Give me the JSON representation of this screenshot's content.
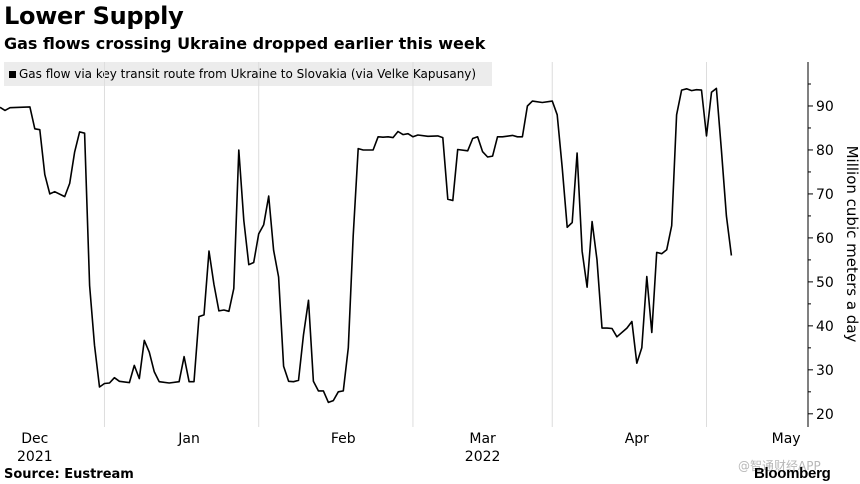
{
  "header": {
    "title": "Lower Supply",
    "subtitle": "Gas flows crossing Ukraine dropped earlier this week"
  },
  "footer": {
    "source": "Source: Eustream",
    "brand": "Bloomberg",
    "watermark": "@智通财经APP"
  },
  "colors": {
    "line": "#000000",
    "legend_bg": "#ececec",
    "grid": "#dddddd"
  },
  "chart_data": {
    "type": "line",
    "legend": "Gas flow via key transit route from Ukraine to Slovakia (via Velke Kapusany)",
    "ylabel": "Million cubic meters a day",
    "ylim": [
      17,
      100
    ],
    "yticks": [
      20,
      30,
      40,
      50,
      60,
      70,
      80,
      90
    ],
    "xlim": [
      "2021-11-24",
      "2022-05-05"
    ],
    "x_tick_labels": [
      {
        "date": "2021-12-01",
        "label": "Dec",
        "sublabel": "2021"
      },
      {
        "date": "2022-01-01",
        "label": "Jan",
        "sublabel": ""
      },
      {
        "date": "2022-02-01",
        "label": "Feb",
        "sublabel": ""
      },
      {
        "date": "2022-03-01",
        "label": "Mar",
        "sublabel": "2022"
      },
      {
        "date": "2022-04-01",
        "label": "Apr",
        "sublabel": ""
      },
      {
        "date": "2022-05-01",
        "label": "May",
        "sublabel": ""
      }
    ],
    "grid_dates": [
      "2021-12-15",
      "2022-01-15",
      "2022-02-15",
      "2022-03-15",
      "2022-04-15"
    ],
    "series": [
      {
        "name": "Gas flow via key transit route from Ukraine to Slovakia (via Velke Kapusany)",
        "points": [
          [
            "2021-11-24",
            89.7
          ],
          [
            "2021-11-25",
            89.0
          ],
          [
            "2021-11-26",
            89.6
          ],
          [
            "2021-11-28",
            89.7
          ],
          [
            "2021-11-30",
            89.8
          ],
          [
            "2021-12-01",
            84.8
          ],
          [
            "2021-12-02",
            84.6
          ],
          [
            "2021-12-03",
            74.4
          ],
          [
            "2021-12-04",
            70.0
          ],
          [
            "2021-12-05",
            70.5
          ],
          [
            "2021-12-07",
            69.4
          ],
          [
            "2021-12-08",
            72.4
          ],
          [
            "2021-12-09",
            79.5
          ],
          [
            "2021-12-10",
            84.1
          ],
          [
            "2021-12-11",
            83.8
          ],
          [
            "2021-12-12",
            49.2
          ],
          [
            "2021-12-13",
            35.6
          ],
          [
            "2021-12-14",
            26.1
          ],
          [
            "2021-12-15",
            26.9
          ],
          [
            "2021-12-16",
            27.0
          ],
          [
            "2021-12-17",
            28.2
          ],
          [
            "2021-12-18",
            27.4
          ],
          [
            "2021-12-20",
            27.1
          ],
          [
            "2021-12-21",
            31.0
          ],
          [
            "2021-12-22",
            28.0
          ],
          [
            "2021-12-23",
            36.7
          ],
          [
            "2021-12-24",
            34.0
          ],
          [
            "2021-12-25",
            29.6
          ],
          [
            "2021-12-26",
            27.3
          ],
          [
            "2021-12-28",
            27.0
          ],
          [
            "2021-12-30",
            27.3
          ],
          [
            "2021-12-31",
            33.0
          ],
          [
            "2022-01-01",
            27.3
          ],
          [
            "2022-01-02",
            27.3
          ],
          [
            "2022-01-03",
            42.1
          ],
          [
            "2022-01-04",
            42.5
          ],
          [
            "2022-01-05",
            57.0
          ],
          [
            "2022-01-06",
            49.5
          ],
          [
            "2022-01-07",
            43.4
          ],
          [
            "2022-01-08",
            43.6
          ],
          [
            "2022-01-09",
            43.3
          ],
          [
            "2022-01-10",
            48.5
          ],
          [
            "2022-01-11",
            80.0
          ],
          [
            "2022-01-12",
            64.0
          ],
          [
            "2022-01-13",
            53.9
          ],
          [
            "2022-01-14",
            54.4
          ],
          [
            "2022-01-15",
            60.9
          ],
          [
            "2022-01-16",
            63.0
          ],
          [
            "2022-01-17",
            69.5
          ],
          [
            "2022-01-18",
            57.2
          ],
          [
            "2022-01-19",
            51.1
          ],
          [
            "2022-01-20",
            30.8
          ],
          [
            "2022-01-21",
            27.4
          ],
          [
            "2022-01-22",
            27.3
          ],
          [
            "2022-01-23",
            27.6
          ],
          [
            "2022-01-24",
            38.0
          ],
          [
            "2022-01-25",
            45.8
          ],
          [
            "2022-01-26",
            27.4
          ],
          [
            "2022-01-27",
            25.2
          ],
          [
            "2022-01-28",
            25.2
          ],
          [
            "2022-01-29",
            22.6
          ],
          [
            "2022-01-30",
            23.0
          ],
          [
            "2022-01-31",
            25.0
          ],
          [
            "2022-02-01",
            25.2
          ],
          [
            "2022-02-02",
            35.0
          ],
          [
            "2022-02-03",
            60.5
          ],
          [
            "2022-02-04",
            80.3
          ],
          [
            "2022-02-05",
            80.0
          ],
          [
            "2022-02-07",
            80.0
          ],
          [
            "2022-02-08",
            83.0
          ],
          [
            "2022-02-09",
            82.9
          ],
          [
            "2022-02-10",
            83.0
          ],
          [
            "2022-02-11",
            82.8
          ],
          [
            "2022-02-12",
            84.2
          ],
          [
            "2022-02-13",
            83.5
          ],
          [
            "2022-02-14",
            83.7
          ],
          [
            "2022-02-15",
            83.0
          ],
          [
            "2022-02-16",
            83.4
          ],
          [
            "2022-02-18",
            83.1
          ],
          [
            "2022-02-20",
            83.2
          ],
          [
            "2022-02-21",
            82.8
          ],
          [
            "2022-02-22",
            68.8
          ],
          [
            "2022-02-23",
            68.5
          ],
          [
            "2022-02-24",
            80.1
          ],
          [
            "2022-02-26",
            79.8
          ],
          [
            "2022-02-27",
            82.6
          ],
          [
            "2022-02-28",
            83.0
          ],
          [
            "2022-03-01",
            79.6
          ],
          [
            "2022-03-02",
            78.4
          ],
          [
            "2022-03-03",
            78.6
          ],
          [
            "2022-03-04",
            83.0
          ],
          [
            "2022-03-05",
            83.0
          ],
          [
            "2022-03-07",
            83.3
          ],
          [
            "2022-03-08",
            83.0
          ],
          [
            "2022-03-09",
            83.0
          ],
          [
            "2022-03-10",
            90.0
          ],
          [
            "2022-03-11",
            91.1
          ],
          [
            "2022-03-13",
            90.8
          ],
          [
            "2022-03-15",
            91.1
          ],
          [
            "2022-03-16",
            88.0
          ],
          [
            "2022-03-17",
            76.0
          ],
          [
            "2022-03-18",
            62.4
          ],
          [
            "2022-03-19",
            63.5
          ],
          [
            "2022-03-20",
            79.3
          ],
          [
            "2022-03-21",
            57.0
          ],
          [
            "2022-03-22",
            48.8
          ],
          [
            "2022-03-23",
            63.7
          ],
          [
            "2022-03-24",
            55.0
          ],
          [
            "2022-03-25",
            39.5
          ],
          [
            "2022-03-26",
            39.5
          ],
          [
            "2022-03-27",
            39.4
          ],
          [
            "2022-03-28",
            37.5
          ],
          [
            "2022-03-30",
            39.5
          ],
          [
            "2022-03-31",
            41.0
          ],
          [
            "2022-04-01",
            31.5
          ],
          [
            "2022-04-02",
            35.0
          ],
          [
            "2022-04-03",
            51.2
          ],
          [
            "2022-04-04",
            38.5
          ],
          [
            "2022-04-05",
            56.7
          ],
          [
            "2022-04-06",
            56.4
          ],
          [
            "2022-04-07",
            57.3
          ],
          [
            "2022-04-08",
            62.8
          ],
          [
            "2022-04-09",
            88.0
          ],
          [
            "2022-04-10",
            93.6
          ],
          [
            "2022-04-11",
            93.9
          ],
          [
            "2022-04-12",
            93.5
          ],
          [
            "2022-04-13",
            93.7
          ],
          [
            "2022-04-14",
            93.6
          ],
          [
            "2022-04-15",
            83.2
          ],
          [
            "2022-04-16",
            93.1
          ],
          [
            "2022-04-17",
            94.0
          ],
          [
            "2022-04-18",
            80.0
          ],
          [
            "2022-04-19",
            65.0
          ],
          [
            "2022-04-20",
            56.0
          ]
        ]
      }
    ]
  }
}
